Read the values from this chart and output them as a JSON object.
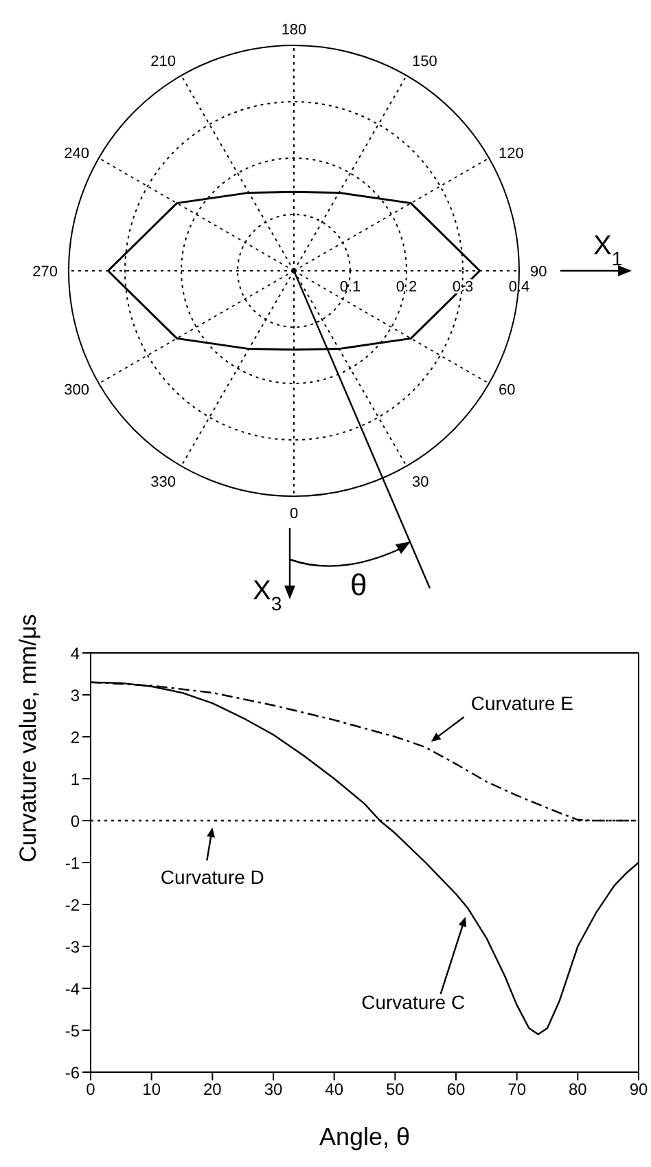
{
  "chart_data": [
    {
      "type": "radar",
      "categories": [
        "180",
        "150",
        "120",
        "90",
        "60",
        "30",
        "0",
        "330",
        "300",
        "270",
        "240",
        "210"
      ],
      "series": [
        {
          "color": "#000000",
          "values": [
            0.14,
            0.16,
            0.24,
            0.33,
            0.24,
            0.16,
            0.14,
            0.16,
            0.24,
            0.33,
            0.24,
            0.16
          ]
        }
      ],
      "ylim": [
        0,
        0.4
      ],
      "yticks": [
        0.1,
        0.2,
        0.3,
        0.4
      ],
      "grid": true,
      "annotations": [
        "X$_{1}$",
        "X$_{3}$",
        "θ"
      ]
    },
    {
      "type": "line",
      "xlabel": "Angle, θ",
      "ylabel": "Curvature value, mm/μs",
      "xlim": [
        0,
        90
      ],
      "ylim": [
        -6,
        4
      ],
      "xticks": [
        0,
        10,
        20,
        30,
        40,
        50,
        60,
        70,
        80,
        90
      ],
      "yticks": [
        -6,
        -5,
        -4,
        -3,
        -2,
        -1,
        0,
        1,
        2,
        3,
        4
      ],
      "series": [
        {
          "name": "Curvature E",
          "color": "#000000",
          "line_style": "dashed",
          "x": [
            0,
            10,
            20,
            30,
            40,
            50,
            55,
            60,
            65,
            70,
            75,
            78,
            80,
            83,
            90
          ],
          "values": [
            3.3,
            3.22,
            3.05,
            2.75,
            2.4,
            2.0,
            1.75,
            1.35,
            0.93,
            0.6,
            0.3,
            0.13,
            0.02,
            0,
            0
          ]
        },
        {
          "name": "Curvature D",
          "color": "#000000",
          "line_style": "dotted",
          "x": [
            0,
            10,
            20,
            30,
            40,
            50,
            60,
            70,
            80,
            90
          ],
          "values": [
            0,
            0,
            0,
            0,
            0,
            0,
            0,
            0,
            0,
            0
          ]
        },
        {
          "name": "Curvature C",
          "color": "#000000",
          "line_style": "solid",
          "x": [
            0,
            5,
            10,
            15,
            20,
            25,
            30,
            35,
            40,
            45,
            47.5,
            50,
            55,
            60,
            62,
            65,
            68,
            70,
            72,
            73.5,
            75,
            77,
            80,
            83,
            86,
            88,
            90
          ],
          "values": [
            3.3,
            3.28,
            3.2,
            3.05,
            2.8,
            2.45,
            2.05,
            1.55,
            1.0,
            0.4,
            0,
            -0.3,
            -1.0,
            -1.75,
            -2.1,
            -2.8,
            -3.7,
            -4.4,
            -4.95,
            -5.1,
            -4.95,
            -4.3,
            -3.0,
            -2.2,
            -1.55,
            -1.25,
            -1.0
          ]
        }
      ]
    }
  ]
}
